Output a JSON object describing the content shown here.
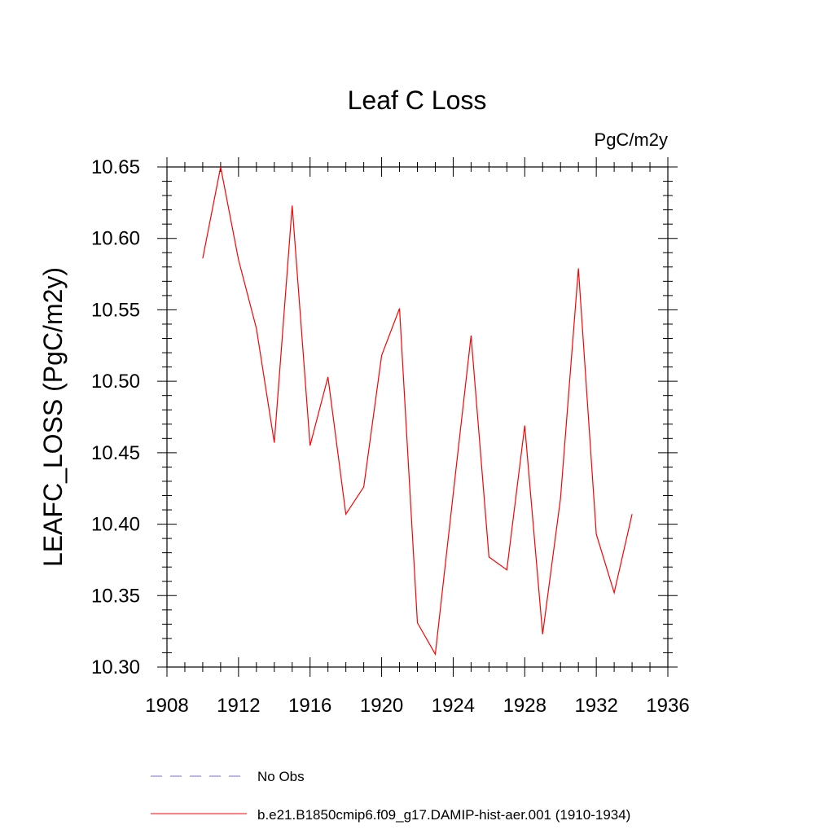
{
  "chart_data": {
    "type": "line",
    "title": "Leaf C Loss",
    "units": "PgC/m2y",
    "xlabel": "",
    "ylabel": "LEAFC_LOSS  (PgC/m2y)",
    "xlim": [
      1908,
      1936
    ],
    "ylim": [
      10.3,
      10.65
    ],
    "x_ticks": [
      1908,
      1912,
      1916,
      1920,
      1924,
      1928,
      1932,
      1936
    ],
    "y_ticks": [
      10.3,
      10.35,
      10.4,
      10.45,
      10.5,
      10.55,
      10.6,
      10.65
    ],
    "x_tick_labels": [
      "1908",
      "1912",
      "1916",
      "1920",
      "1924",
      "1928",
      "1932",
      "1936"
    ],
    "y_tick_labels": [
      "10.30",
      "10.35",
      "10.40",
      "10.45",
      "10.50",
      "10.55",
      "10.60",
      "10.65"
    ],
    "grid": false,
    "legend_position": "bottom",
    "series": [
      {
        "name": "No Obs",
        "color": "#7b68c8",
        "style": "dashed",
        "x": [],
        "values": []
      },
      {
        "name": "b.e21.B1850cmip6.f09_g17.DAMIP-hist-aer.001 (1910-1934)",
        "color": "#ff0000",
        "style": "solid",
        "x": [
          1910,
          1911,
          1912,
          1913,
          1914,
          1915,
          1916,
          1917,
          1918,
          1919,
          1920,
          1921,
          1922,
          1923,
          1924,
          1925,
          1926,
          1927,
          1928,
          1929,
          1930,
          1931,
          1932,
          1933,
          1934
        ],
        "values": [
          10.586,
          10.65,
          10.585,
          10.537,
          10.457,
          10.623,
          10.455,
          10.503,
          10.407,
          10.426,
          10.518,
          10.551,
          10.331,
          10.309,
          10.421,
          10.532,
          10.377,
          10.368,
          10.469,
          10.323,
          10.418,
          10.579,
          10.393,
          10.352,
          10.407
        ]
      }
    ]
  }
}
